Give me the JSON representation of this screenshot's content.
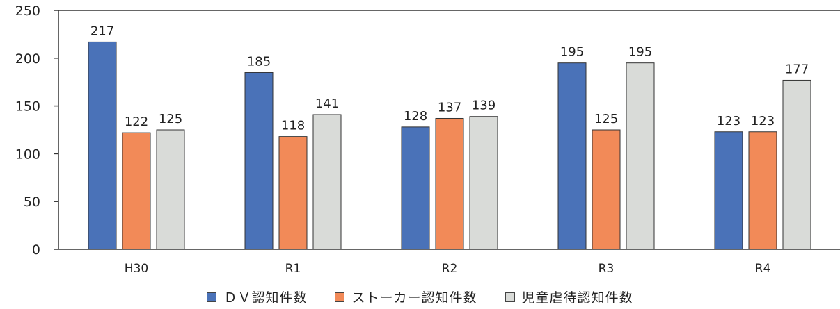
{
  "chart_data": {
    "type": "bar",
    "title": "",
    "xlabel": "",
    "ylabel": "",
    "categories": [
      "H30",
      "R1",
      "R2",
      "R3",
      "R4"
    ],
    "series": [
      {
        "name": "ＤＶ認知件数",
        "color": "#4a72b8",
        "values": [
          217,
          185,
          128,
          195,
          123
        ]
      },
      {
        "name": "ストーカー認知件数",
        "color": "#f28a58",
        "values": [
          122,
          118,
          137,
          125,
          123
        ]
      },
      {
        "name": "児童虐待認知件数",
        "color": "#d9dbd8",
        "values": [
          125,
          141,
          139,
          195,
          177
        ]
      }
    ],
    "ylim": [
      0,
      250
    ],
    "yticks": [
      "0",
      "50",
      "100",
      "150",
      "200",
      "250"
    ],
    "grid": false,
    "legend_position": "bottom"
  }
}
